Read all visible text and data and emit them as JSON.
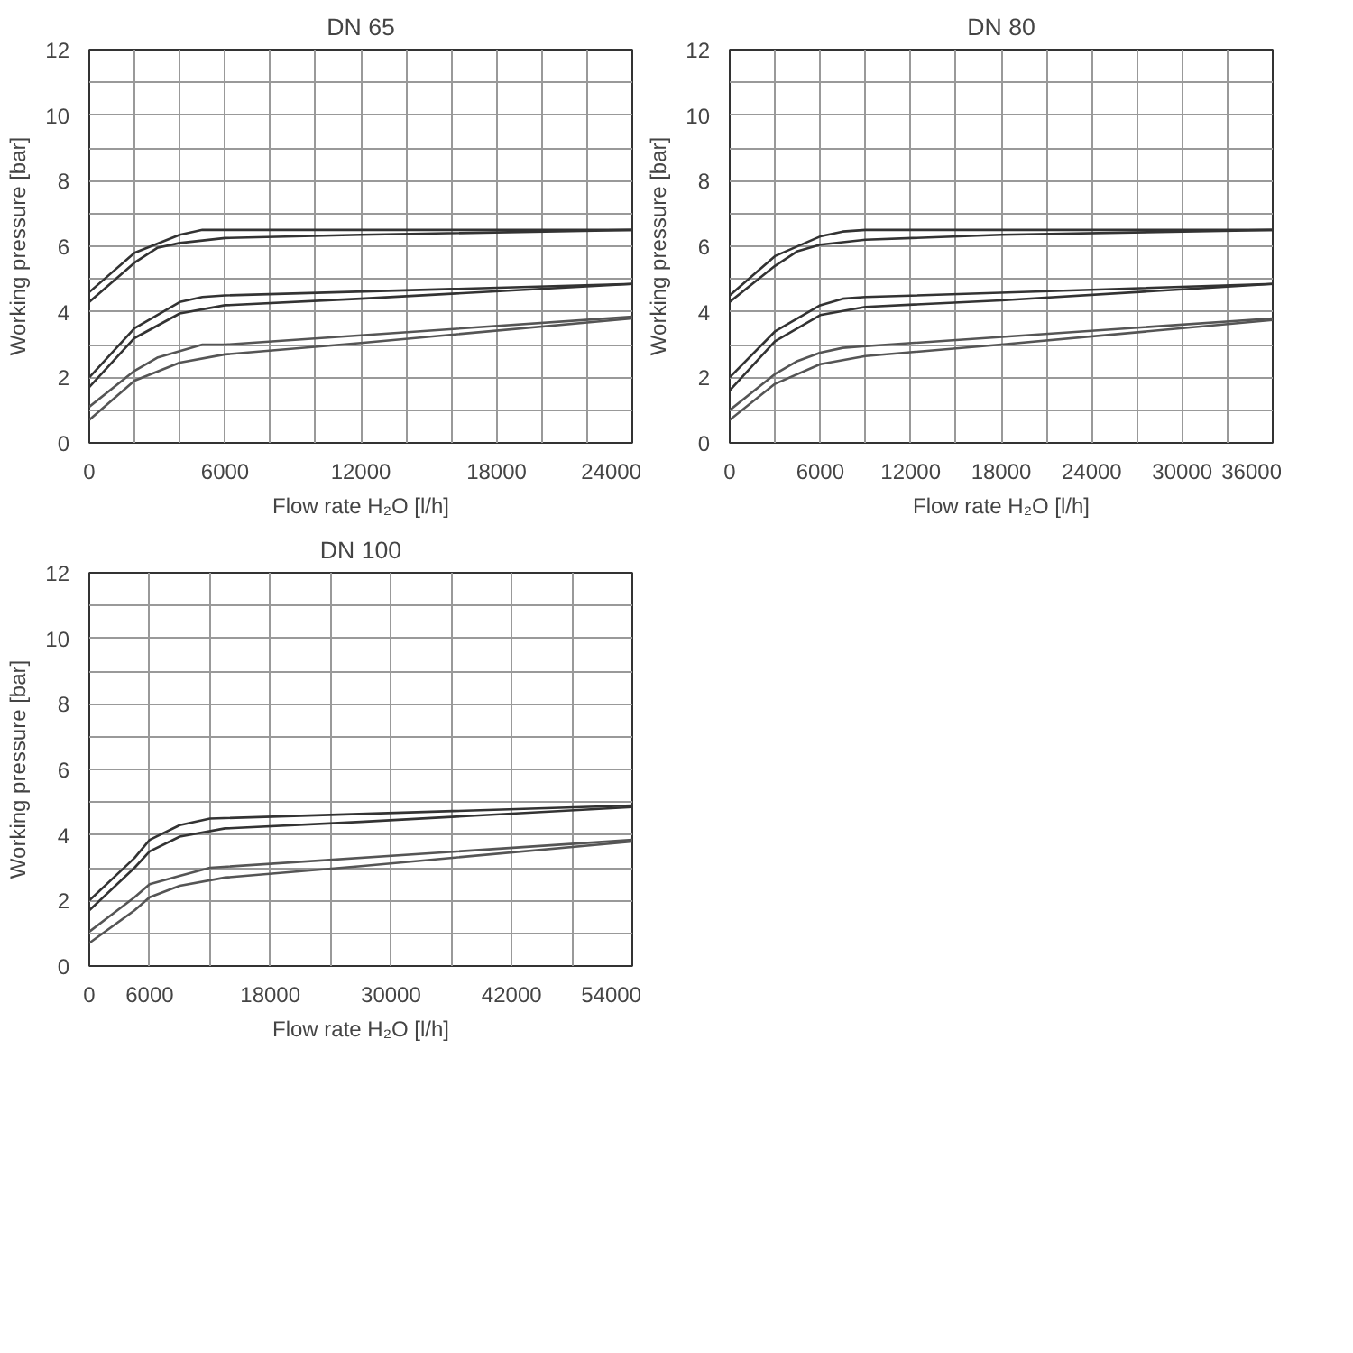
{
  "chart_data": [
    {
      "type": "line",
      "title": "DN 65",
      "xlabel": "Flow rate H₂O [l/h]",
      "ylabel": "Working pressure [bar]",
      "grid": true,
      "line_style": "solid",
      "xlim": [
        0,
        24000
      ],
      "ylim": [
        0,
        12
      ],
      "xticks": [
        0,
        {
          "value": 2000,
          "label": null
        },
        {
          "value": 4000,
          "label": null
        },
        6000,
        {
          "value": 8000,
          "label": null
        },
        {
          "value": 10000,
          "label": null
        },
        12000,
        {
          "value": 14000,
          "label": null
        },
        {
          "value": 16000,
          "label": null
        },
        18000,
        {
          "value": 20000,
          "label": null
        },
        {
          "value": 22000,
          "label": null
        },
        24000
      ],
      "yticks": [
        0,
        {
          "value": 1,
          "label": null
        },
        2,
        {
          "value": 3,
          "label": null
        },
        4,
        {
          "value": 5,
          "label": null
        },
        6,
        {
          "value": 7,
          "label": null
        },
        8,
        {
          "value": 9,
          "label": null
        },
        10,
        {
          "value": 11,
          "label": null
        },
        12
      ],
      "series": [
        {
          "color": "#333333",
          "x": [
            0,
            2000,
            4000,
            5000,
            6000,
            24000
          ],
          "values": [
            4.6,
            5.8,
            6.35,
            6.5,
            6.5,
            6.5
          ]
        },
        {
          "color": "#333333",
          "x": [
            0,
            2000,
            3000,
            4000,
            6000,
            12000,
            24000
          ],
          "values": [
            4.3,
            5.5,
            5.95,
            6.1,
            6.25,
            6.35,
            6.5
          ]
        },
        {
          "color": "#333333",
          "x": [
            0,
            2000,
            4000,
            5000,
            6000,
            24000
          ],
          "values": [
            2.0,
            3.5,
            4.3,
            4.45,
            4.5,
            4.85
          ]
        },
        {
          "color": "#333333",
          "x": [
            0,
            2000,
            4000,
            6000,
            12000,
            24000
          ],
          "values": [
            1.7,
            3.2,
            3.95,
            4.2,
            4.4,
            4.85
          ]
        },
        {
          "color": "#555555",
          "x": [
            0,
            2000,
            3000,
            4000,
            5000,
            6000,
            24000
          ],
          "values": [
            1.1,
            2.2,
            2.6,
            2.8,
            3.0,
            3.0,
            3.85
          ]
        },
        {
          "color": "#555555",
          "x": [
            0,
            2000,
            4000,
            6000,
            12000,
            24000
          ],
          "values": [
            0.7,
            1.9,
            2.45,
            2.7,
            3.05,
            3.8
          ]
        }
      ]
    },
    {
      "type": "line",
      "title": "DN 80",
      "xlabel": "Flow rate H₂O [l/h]",
      "ylabel": "Working pressure [bar]",
      "grid": true,
      "line_style": "solid",
      "xlim": [
        0,
        36000
      ],
      "ylim": [
        0,
        12
      ],
      "xticks": [
        0,
        {
          "value": 3000,
          "label": null
        },
        6000,
        {
          "value": 9000,
          "label": null
        },
        12000,
        {
          "value": 15000,
          "label": null
        },
        18000,
        {
          "value": 21000,
          "label": null
        },
        24000,
        {
          "value": 27000,
          "label": null
        },
        30000,
        {
          "value": 33000,
          "label": null
        },
        36000
      ],
      "yticks": [
        0,
        {
          "value": 1,
          "label": null
        },
        2,
        {
          "value": 3,
          "label": null
        },
        4,
        {
          "value": 5,
          "label": null
        },
        6,
        {
          "value": 7,
          "label": null
        },
        8,
        {
          "value": 9,
          "label": null
        },
        10,
        {
          "value": 11,
          "label": null
        },
        12
      ],
      "series": [
        {
          "color": "#333333",
          "x": [
            0,
            3000,
            6000,
            7500,
            9000,
            36000
          ],
          "values": [
            4.5,
            5.7,
            6.3,
            6.45,
            6.5,
            6.5
          ]
        },
        {
          "color": "#333333",
          "x": [
            0,
            3000,
            4500,
            6000,
            9000,
            18000,
            36000
          ],
          "values": [
            4.3,
            5.4,
            5.85,
            6.05,
            6.2,
            6.35,
            6.5
          ]
        },
        {
          "color": "#333333",
          "x": [
            0,
            3000,
            6000,
            7500,
            9000,
            36000
          ],
          "values": [
            2.0,
            3.4,
            4.2,
            4.4,
            4.45,
            4.85
          ]
        },
        {
          "color": "#333333",
          "x": [
            0,
            3000,
            6000,
            9000,
            18000,
            36000
          ],
          "values": [
            1.6,
            3.1,
            3.9,
            4.15,
            4.35,
            4.85
          ]
        },
        {
          "color": "#555555",
          "x": [
            0,
            3000,
            4500,
            6000,
            7500,
            9000,
            36000
          ],
          "values": [
            1.0,
            2.1,
            2.5,
            2.75,
            2.9,
            2.95,
            3.8
          ]
        },
        {
          "color": "#555555",
          "x": [
            0,
            3000,
            6000,
            9000,
            18000,
            36000
          ],
          "values": [
            0.7,
            1.8,
            2.4,
            2.65,
            3.0,
            3.75
          ]
        }
      ]
    },
    {
      "type": "line",
      "title": "DN 100",
      "xlabel": "Flow rate H₂O [l/h]",
      "ylabel": "Working pressure [bar]",
      "grid": true,
      "line_style": "solid",
      "xlim": [
        0,
        54000
      ],
      "ylim": [
        0,
        12
      ],
      "xticks": [
        0,
        6000,
        {
          "value": 12000,
          "label": null
        },
        18000,
        {
          "value": 24000,
          "label": null
        },
        30000,
        {
          "value": 36000,
          "label": null
        },
        42000,
        {
          "value": 48000,
          "label": null
        },
        54000
      ],
      "yticks": [
        0,
        {
          "value": 1,
          "label": null
        },
        2,
        {
          "value": 3,
          "label": null
        },
        4,
        {
          "value": 5,
          "label": null
        },
        6,
        {
          "value": 7,
          "label": null
        },
        8,
        {
          "value": 9,
          "label": null
        },
        10,
        {
          "value": 11,
          "label": null
        },
        12
      ],
      "series": [
        {
          "color": "#333333",
          "x": [
            0,
            4500,
            6000,
            9000,
            12000,
            54000
          ],
          "values": [
            2.0,
            3.3,
            3.85,
            4.3,
            4.5,
            4.9
          ]
        },
        {
          "color": "#333333",
          "x": [
            0,
            4500,
            6000,
            9000,
            13500,
            27000,
            54000
          ],
          "values": [
            1.7,
            3.0,
            3.5,
            3.95,
            4.2,
            4.4,
            4.85
          ]
        },
        {
          "color": "#555555",
          "x": [
            0,
            4500,
            6000,
            9000,
            12000,
            54000
          ],
          "values": [
            1.05,
            2.1,
            2.5,
            2.75,
            3.0,
            3.85
          ]
        },
        {
          "color": "#555555",
          "x": [
            0,
            4500,
            6000,
            9000,
            13500,
            27000,
            54000
          ],
          "values": [
            0.7,
            1.7,
            2.1,
            2.45,
            2.7,
            3.05,
            3.8
          ]
        }
      ]
    }
  ]
}
